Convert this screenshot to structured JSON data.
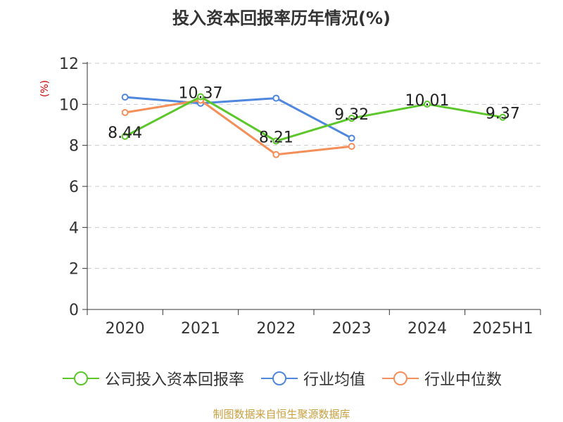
{
  "chart_data": {
    "type": "line",
    "title": "投入资本回报率历年情况(%)",
    "unit_label": "(%)",
    "categories": [
      "2020",
      "2021",
      "2022",
      "2023",
      "2024",
      "2025H1"
    ],
    "y_ticks": [
      "0",
      "2",
      "4",
      "6",
      "8",
      "10",
      "12"
    ],
    "ylim": [
      0,
      12
    ],
    "grid": "horizontal-dashed",
    "legend_position": "bottom",
    "series": [
      {
        "name": "公司投入资本回报率",
        "color": "#5cc72b",
        "values": [
          8.44,
          10.37,
          8.21,
          9.32,
          10.01,
          9.37
        ],
        "labels": [
          "8.44",
          "10.37",
          "8.21",
          "9.32",
          "10.01",
          "9.37"
        ]
      },
      {
        "name": "行业均值",
        "color": "#4f86de",
        "values": [
          10.35,
          10.05,
          10.3,
          8.35,
          null,
          null
        ]
      },
      {
        "name": "行业中位数",
        "color": "#f58f5a",
        "values": [
          9.6,
          10.2,
          7.55,
          7.95,
          null,
          null
        ]
      }
    ]
  },
  "source": "制图数据来自恒生聚源数据库"
}
